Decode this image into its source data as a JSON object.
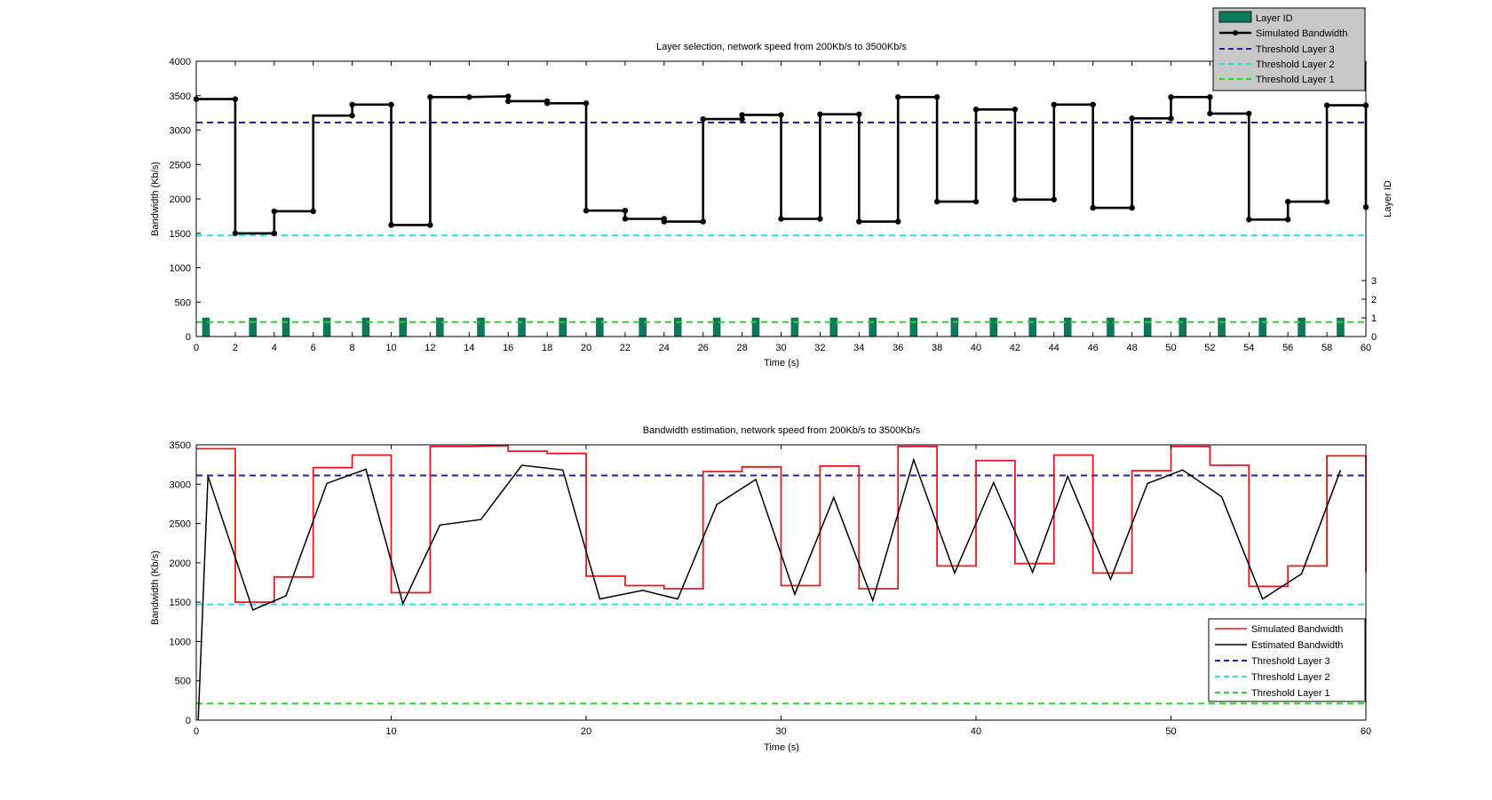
{
  "colors": {
    "simulated_top": "#000000",
    "simulated_bottom": "#e41a1c",
    "estimated": "#000000",
    "layer3": "#1f1fb4",
    "layer2": "#33e0e8",
    "layer1": "#33cc33",
    "layer_bar": "#0a7a5a",
    "legend_bg_top": "#c8c8c8"
  },
  "chart_data": [
    {
      "type": "line",
      "title": "Layer selection, network speed from 200Kb/s to 3500Kb/s",
      "xlabel": "Time (s)",
      "ylabel": "Bandwidth (Kb/s)",
      "y2label": "Layer ID",
      "xlim": [
        0,
        60
      ],
      "ylim": [
        0,
        4000
      ],
      "x_ticks": [
        "0",
        "2",
        "4",
        "6",
        "8",
        "10",
        "12",
        "14",
        "16",
        "18",
        "20",
        "22",
        "24",
        "26",
        "28",
        "30",
        "32",
        "34",
        "36",
        "38",
        "40",
        "42",
        "44",
        "46",
        "48",
        "50",
        "52",
        "54",
        "56",
        "58",
        "60"
      ],
      "y_ticks": [
        "0",
        "500",
        "1000",
        "1500",
        "2000",
        "2500",
        "3000",
        "3500",
        "4000"
      ],
      "y2_ticks": [
        "0",
        "1",
        "2",
        "3"
      ],
      "legend": {
        "position": "top-right",
        "entries": [
          "Layer ID",
          "Simulated Bandwidth",
          "Threshold Layer 3",
          "Threshold Layer 2",
          "Threshold Layer 1"
        ]
      },
      "thresholds": {
        "layer3": 3110,
        "layer2": 1470,
        "layer1": 210
      },
      "simulated_bandwidth": [
        [
          0,
          3450
        ],
        [
          2,
          3450
        ],
        [
          2,
          1500
        ],
        [
          4,
          1500
        ],
        [
          4,
          1820
        ],
        [
          6,
          1820
        ],
        [
          6,
          3210
        ],
        [
          8,
          3210
        ],
        [
          8,
          3370
        ],
        [
          10,
          3370
        ],
        [
          10,
          1620
        ],
        [
          12,
          1620
        ],
        [
          12,
          3480
        ],
        [
          14,
          3480
        ],
        [
          16,
          3490
        ],
        [
          16,
          3420
        ],
        [
          18,
          3420
        ],
        [
          18,
          3390
        ],
        [
          20,
          3390
        ],
        [
          20,
          1830
        ],
        [
          22,
          1830
        ],
        [
          22,
          1710
        ],
        [
          24,
          1710
        ],
        [
          24,
          1670
        ],
        [
          26,
          1670
        ],
        [
          26,
          3160
        ],
        [
          28,
          3160
        ],
        [
          28,
          3220
        ],
        [
          30,
          3220
        ],
        [
          30,
          1710
        ],
        [
          32,
          1710
        ],
        [
          32,
          3230
        ],
        [
          34,
          3230
        ],
        [
          34,
          1670
        ],
        [
          36,
          1670
        ],
        [
          36,
          3480
        ],
        [
          38,
          3480
        ],
        [
          38,
          1960
        ],
        [
          40,
          1960
        ],
        [
          40,
          3300
        ],
        [
          42,
          3300
        ],
        [
          42,
          1990
        ],
        [
          44,
          1990
        ],
        [
          44,
          3370
        ],
        [
          46,
          3370
        ],
        [
          46,
          1870
        ],
        [
          48,
          1870
        ],
        [
          48,
          3170
        ],
        [
          50,
          3170
        ],
        [
          50,
          3480
        ],
        [
          52,
          3480
        ],
        [
          52,
          3240
        ],
        [
          54,
          3240
        ],
        [
          54,
          1700
        ],
        [
          56,
          1700
        ],
        [
          56,
          1960
        ],
        [
          58,
          1960
        ],
        [
          58,
          3360
        ],
        [
          60,
          3360
        ],
        [
          60,
          1880
        ]
      ],
      "simulated_markers": [
        [
          0,
          3450
        ],
        [
          2,
          3450
        ],
        [
          2,
          1500
        ],
        [
          4,
          1500
        ],
        [
          4,
          1820
        ],
        [
          6,
          1820
        ],
        [
          8,
          3210
        ],
        [
          8,
          3370
        ],
        [
          10,
          3370
        ],
        [
          10,
          1620
        ],
        [
          12,
          1620
        ],
        [
          12,
          3480
        ],
        [
          14,
          3480
        ],
        [
          16,
          3490
        ],
        [
          16,
          3420
        ],
        [
          18,
          3420
        ],
        [
          18,
          3390
        ],
        [
          20,
          3390
        ],
        [
          20,
          1830
        ],
        [
          22,
          1830
        ],
        [
          22,
          1710
        ],
        [
          24,
          1710
        ],
        [
          24,
          1670
        ],
        [
          26,
          1670
        ],
        [
          26,
          3160
        ],
        [
          28,
          3160
        ],
        [
          28,
          3220
        ],
        [
          30,
          3220
        ],
        [
          30,
          1710
        ],
        [
          32,
          1710
        ],
        [
          32,
          3230
        ],
        [
          34,
          3230
        ],
        [
          34,
          1670
        ],
        [
          36,
          1670
        ],
        [
          36,
          3480
        ],
        [
          38,
          3480
        ],
        [
          38,
          1960
        ],
        [
          40,
          1960
        ],
        [
          40,
          3300
        ],
        [
          42,
          3300
        ],
        [
          42,
          1990
        ],
        [
          44,
          1990
        ],
        [
          44,
          3370
        ],
        [
          46,
          3370
        ],
        [
          46,
          1870
        ],
        [
          48,
          1870
        ],
        [
          48,
          3170
        ],
        [
          50,
          3170
        ],
        [
          50,
          3480
        ],
        [
          52,
          3480
        ],
        [
          52,
          3240
        ],
        [
          54,
          3240
        ],
        [
          54,
          1700
        ],
        [
          56,
          1700
        ],
        [
          56,
          1960
        ],
        [
          58,
          1960
        ],
        [
          58,
          3360
        ],
        [
          60,
          3360
        ],
        [
          60,
          1880
        ]
      ],
      "layer_id_bars": {
        "x": [
          0.5,
          2.9,
          4.6,
          6.7,
          8.7,
          10.6,
          12.5,
          14.6,
          16.7,
          18.8,
          20.7,
          22.9,
          24.7,
          26.7,
          28.7,
          30.7,
          32.7,
          34.7,
          36.8,
          38.9,
          40.9,
          42.9,
          44.7,
          46.9,
          48.8,
          50.6,
          52.6,
          54.7,
          56.7,
          58.7
        ],
        "value": [
          1,
          1,
          1,
          1,
          1,
          1,
          1,
          1,
          1,
          1,
          1,
          1,
          1,
          1,
          1,
          1,
          1,
          1,
          1,
          1,
          1,
          1,
          1,
          1,
          1,
          1,
          1,
          1,
          1,
          1
        ]
      }
    },
    {
      "type": "line",
      "title": "Bandwidth estimation, network speed from 200Kb/s to 3500Kb/s",
      "xlabel": "Time (s)",
      "ylabel": "Bandwidth (Kb/s)",
      "xlim": [
        0,
        60
      ],
      "ylim": [
        0,
        3500
      ],
      "x_ticks": [
        "0",
        "10",
        "20",
        "30",
        "40",
        "50",
        "60"
      ],
      "y_ticks": [
        "0",
        "500",
        "1000",
        "1500",
        "2000",
        "2500",
        "3000",
        "3500"
      ],
      "legend": {
        "position": "bottom-right",
        "entries": [
          "Simulated Bandwidth",
          "Estimated Bandwidth",
          "Threshold Layer 3",
          "Threshold Layer 2",
          "Threshold Layer 1"
        ]
      },
      "thresholds": {
        "layer3": 3110,
        "layer2": 1470,
        "layer1": 210
      },
      "simulated_bandwidth": [
        [
          0,
          3450
        ],
        [
          2,
          3450
        ],
        [
          2,
          1500
        ],
        [
          4,
          1500
        ],
        [
          4,
          1820
        ],
        [
          6,
          1820
        ],
        [
          6,
          3210
        ],
        [
          8,
          3210
        ],
        [
          8,
          3370
        ],
        [
          10,
          3370
        ],
        [
          10,
          1620
        ],
        [
          12,
          1620
        ],
        [
          12,
          3480
        ],
        [
          14,
          3480
        ],
        [
          16,
          3490
        ],
        [
          16,
          3420
        ],
        [
          18,
          3420
        ],
        [
          18,
          3390
        ],
        [
          20,
          3390
        ],
        [
          20,
          1830
        ],
        [
          22,
          1830
        ],
        [
          22,
          1710
        ],
        [
          24,
          1710
        ],
        [
          24,
          1670
        ],
        [
          26,
          1670
        ],
        [
          26,
          3160
        ],
        [
          28,
          3160
        ],
        [
          28,
          3220
        ],
        [
          30,
          3220
        ],
        [
          30,
          1710
        ],
        [
          32,
          1710
        ],
        [
          32,
          3230
        ],
        [
          34,
          3230
        ],
        [
          34,
          1670
        ],
        [
          36,
          1670
        ],
        [
          36,
          3480
        ],
        [
          38,
          3480
        ],
        [
          38,
          1960
        ],
        [
          40,
          1960
        ],
        [
          40,
          3300
        ],
        [
          42,
          3300
        ],
        [
          42,
          1990
        ],
        [
          44,
          1990
        ],
        [
          44,
          3370
        ],
        [
          46,
          3370
        ],
        [
          46,
          1870
        ],
        [
          48,
          1870
        ],
        [
          48,
          3170
        ],
        [
          50,
          3170
        ],
        [
          50,
          3480
        ],
        [
          52,
          3480
        ],
        [
          52,
          3240
        ],
        [
          54,
          3240
        ],
        [
          54,
          1700
        ],
        [
          56,
          1700
        ],
        [
          56,
          1960
        ],
        [
          58,
          1960
        ],
        [
          58,
          3360
        ],
        [
          60,
          3360
        ],
        [
          60,
          1880
        ]
      ],
      "estimated_bandwidth": [
        [
          0.1,
          0
        ],
        [
          0.6,
          3100
        ],
        [
          2.9,
          1400
        ],
        [
          4.6,
          1580
        ],
        [
          6.7,
          3010
        ],
        [
          8.7,
          3190
        ],
        [
          10.6,
          1480
        ],
        [
          12.5,
          2480
        ],
        [
          14.6,
          2550
        ],
        [
          16.7,
          3240
        ],
        [
          18.8,
          3180
        ],
        [
          20.7,
          1540
        ],
        [
          22.9,
          1650
        ],
        [
          24.7,
          1540
        ],
        [
          26.7,
          2740
        ],
        [
          28.7,
          3060
        ],
        [
          30.7,
          1600
        ],
        [
          32.7,
          2830
        ],
        [
          34.7,
          1520
        ],
        [
          36.8,
          3310
        ],
        [
          38.9,
          1870
        ],
        [
          40.9,
          3020
        ],
        [
          42.9,
          1880
        ],
        [
          44.7,
          3100
        ],
        [
          46.9,
          1790
        ],
        [
          48.8,
          3010
        ],
        [
          50.6,
          3180
        ],
        [
          52.6,
          2840
        ],
        [
          54.7,
          1540
        ],
        [
          56.7,
          1860
        ],
        [
          58.7,
          3180
        ]
      ]
    }
  ]
}
